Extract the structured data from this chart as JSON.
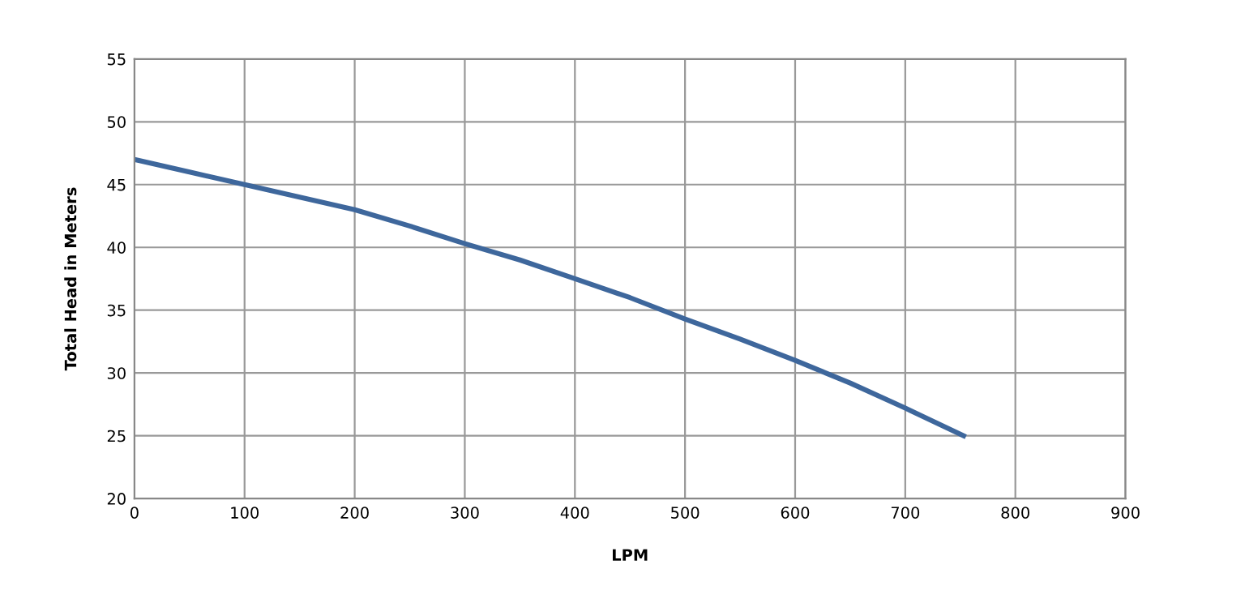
{
  "chart_data": {
    "type": "line",
    "xlabel": "LPM",
    "ylabel": "Total Head in Meters",
    "series": [
      {
        "color": "#3e679c",
        "x": [
          0,
          50,
          100,
          150,
          200,
          250,
          300,
          350,
          400,
          450,
          500,
          550,
          600,
          650,
          700,
          753
        ],
        "values": [
          47,
          46,
          45,
          44,
          43,
          41.7,
          40.3,
          39,
          37.5,
          36,
          34.3,
          32.7,
          31,
          29.2,
          27.2,
          25
        ]
      }
    ],
    "xlim": [
      0,
      900
    ],
    "xticks": [
      0,
      100,
      200,
      300,
      400,
      500,
      600,
      700,
      800,
      900
    ],
    "ylim": [
      20,
      55
    ],
    "yticks": [
      20,
      25,
      30,
      35,
      40,
      45,
      50,
      55
    ],
    "grid": true,
    "legend": false,
    "marker": "none",
    "line_style": "solid"
  }
}
